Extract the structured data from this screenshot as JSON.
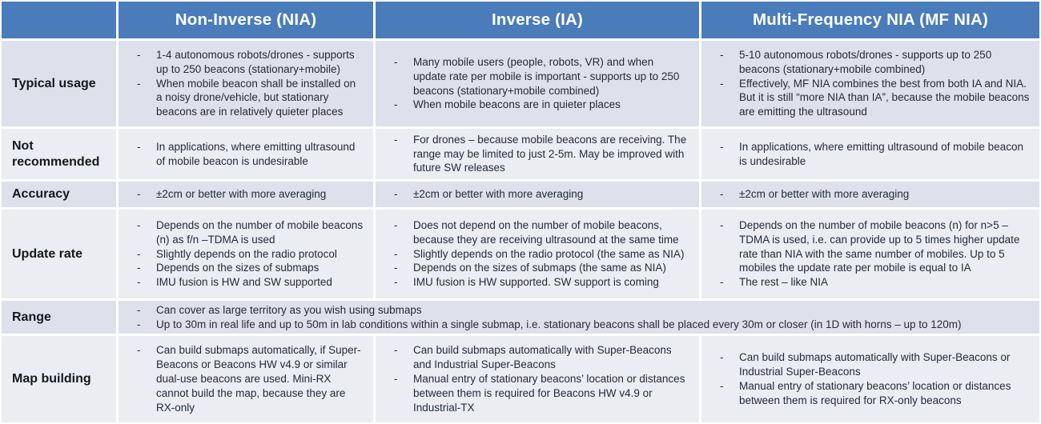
{
  "colors": {
    "header_bg": "#4a7cbb",
    "row_dark": "#dee1eb",
    "row_light": "#ebedf3",
    "header_text": "#ffffff",
    "body_text": "#242b39"
  },
  "table": {
    "columns": [
      "Non-Inverse (NIA)",
      "Inverse  (IA)",
      "Multi-Frequency NIA (MF NIA)"
    ],
    "rows": [
      {
        "label": "Typical  usage",
        "cells": [
          [
            "1-4 autonomous robots/drones - supports up to 250 beacons (stationary+mobile)",
            "When mobile beacon shall be installed on a noisy drone/vehicle, but stationary beacons are in relatively quieter places"
          ],
          [
            "Many mobile users (people, robots, VR) and when update rate per mobile is important - supports up to 250 beacons (stationary+mobile combined)",
            "When mobile beacons are in quieter places"
          ],
          [
            "5-10 autonomous robots/drones - supports up to 250 beacons (stationary+mobile combined)",
            "Effectively, MF NIA combines the best from both IA and NIA. But it is still “more NIA than IA”, because the mobile beacons are emitting the ultrasound"
          ]
        ]
      },
      {
        "label": "Not recommended",
        "cells": [
          [
            "In applications, where emitting ultrasound of mobile beacon is undesirable"
          ],
          [
            "For drones – because mobile beacons are receiving. The range may be limited to just 2-5m. May be improved with future SW releases"
          ],
          [
            "In applications, where emitting ultrasound of mobile beacon is undesirable"
          ]
        ]
      },
      {
        "label": "Accuracy",
        "cells": [
          [
            "±2cm or better with more averaging"
          ],
          [
            "±2cm or better with more averaging"
          ],
          [
            "±2cm or better with more averaging"
          ]
        ]
      },
      {
        "label": "Update rate",
        "cells": [
          [
            "Depends on the number of mobile beacons (n) as f/n –TDMA is used",
            "Slightly depends on the radio protocol",
            "Depends on the sizes of submaps",
            "IMU fusion is HW and SW supported"
          ],
          [
            "Does not depend on the number of mobile beacons, because they are receiving ultrasound at the same time",
            "Slightly depends on the radio protocol (the same as NIA)",
            "Depends on the sizes of submaps (the same as NIA)",
            "IMU fusion is HW supported. SW support is coming"
          ],
          [
            "Depends on the number of mobile beacons (n) for n>5 – TDMA is used, i.e. can provide up to 5 times higher update rate than NIA with the same number of mobiles. Up to 5 mobiles the update rate per mobile is equal to IA",
            "The rest – like NIA"
          ]
        ]
      },
      {
        "label": "Range",
        "merged": true,
        "cells": [
          [
            "Can cover as large territory as you wish using submaps",
            "Up to 30m in real life and up to 50m in lab conditions within a single submap, i.e. stationary beacons shall be placed every 30m or closer (in 1D with horns – up to 120m)"
          ]
        ]
      },
      {
        "label": "Map building",
        "cells": [
          [
            "Can build submaps automatically, if Super-Beacons or Beacons HW v4.9 or similar dual-use beacons are used. Mini-RX cannot build the map, because they are RX-only"
          ],
          [
            "Can build submaps automatically with Super-Beacons and Industrial Super-Beacons",
            "Manual entry of stationary beacons’ location or distances between them is required for Beacons HW v4.9 or Industrial-TX"
          ],
          [
            "Can build submaps automatically with Super-Beacons or Industrial Super-Beacons",
            "Manual entry of stationary beacons’ location or distances between them is required for RX-only beacons"
          ]
        ]
      }
    ]
  }
}
